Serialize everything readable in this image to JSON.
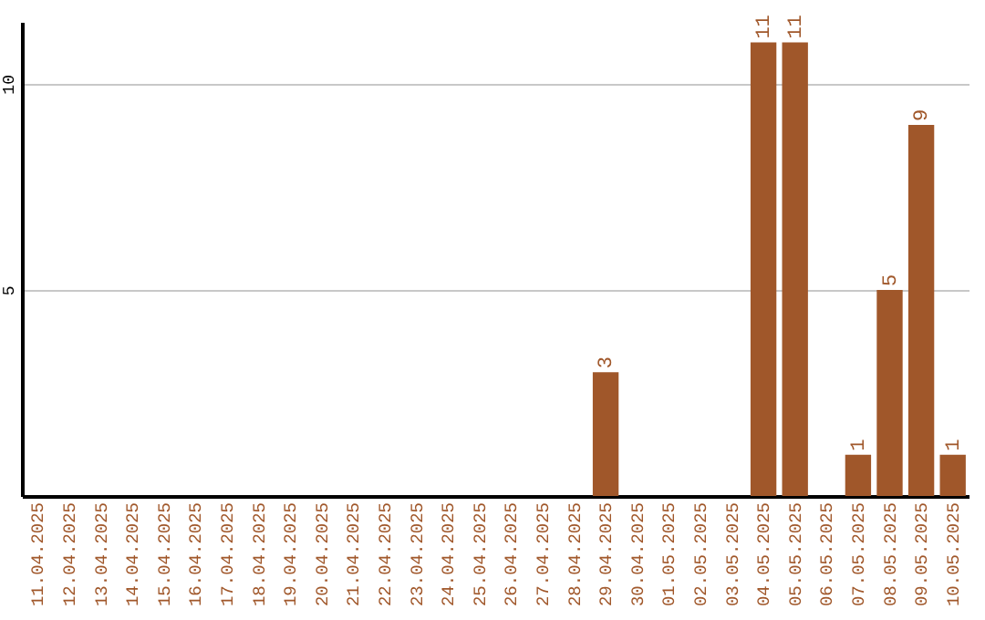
{
  "chart_data": {
    "type": "bar",
    "categories": [
      "11.04.2025",
      "12.04.2025",
      "13.04.2025",
      "14.04.2025",
      "15.04.2025",
      "16.04.2025",
      "17.04.2025",
      "18.04.2025",
      "19.04.2025",
      "20.04.2025",
      "21.04.2025",
      "22.04.2025",
      "23.04.2025",
      "24.04.2025",
      "25.04.2025",
      "26.04.2025",
      "27.04.2025",
      "28.04.2025",
      "29.04.2025",
      "30.04.2025",
      "01.05.2025",
      "02.05.2025",
      "03.05.2025",
      "04.05.2025",
      "05.05.2025",
      "06.05.2025",
      "07.05.2025",
      "08.05.2025",
      "09.05.2025",
      "10.05.2025"
    ],
    "values": [
      0,
      0,
      0,
      0,
      0,
      0,
      0,
      0,
      0,
      0,
      0,
      0,
      0,
      0,
      0,
      0,
      0,
      0,
      3,
      0,
      0,
      0,
      0,
      11,
      11,
      0,
      1,
      5,
      9,
      1
    ],
    "value_labels": [
      null,
      null,
      null,
      null,
      null,
      null,
      null,
      null,
      null,
      null,
      null,
      null,
      null,
      null,
      null,
      null,
      null,
      null,
      "3",
      null,
      null,
      null,
      null,
      "11",
      "11",
      null,
      "1",
      "5",
      "9",
      "1"
    ],
    "color": "#a0572a",
    "ylim": [
      0,
      11.5
    ],
    "yticks": [
      5,
      10
    ],
    "grid": "y"
  }
}
